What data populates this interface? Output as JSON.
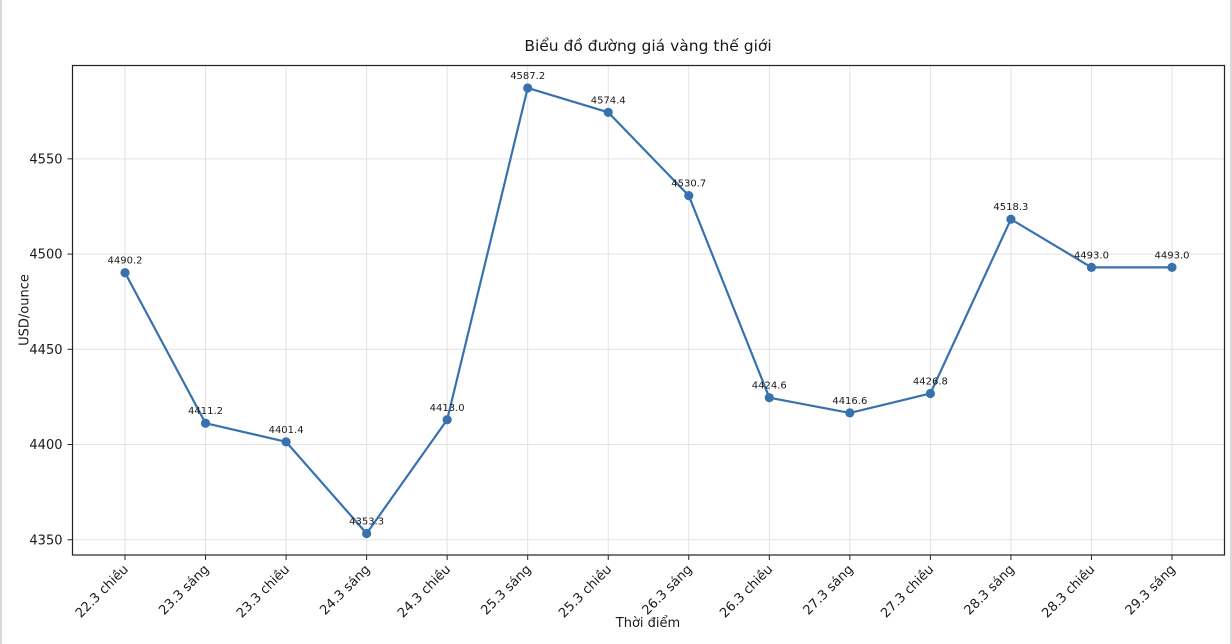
{
  "page": {
    "background": "#ffffff",
    "edge_border_color": "#d9d9d9"
  },
  "chart_data": {
    "type": "line",
    "title": "Biểu đồ đường giá vàng thế giới",
    "xlabel": "Thời điểm",
    "ylabel": "USD/ounce",
    "categories": [
      "22.3 chiều",
      "23.3 sáng",
      "23.3 chiều",
      "24.3 sáng",
      "24.3 chiều",
      "25.3 sáng",
      "25.3 chiều",
      "26.3 sáng",
      "26.3 chiều",
      "27.3 sáng",
      "27.3 chiều",
      "28.3 sáng",
      "28.3 chiều",
      "29.3 sáng"
    ],
    "values": [
      4490.2,
      4411.2,
      4401.4,
      4353.3,
      4413.0,
      4587.2,
      4574.4,
      4530.7,
      4424.6,
      4416.6,
      4426.8,
      4518.3,
      4493.0,
      4493.0
    ],
    "point_labels": [
      "4490.2",
      "4411.2",
      "4401.4",
      "4353.3",
      "4413.0",
      "4587.2",
      "4574.4",
      "4530.7",
      "4424.6",
      "4416.6",
      "4426.8",
      "4518.3",
      "4493.0",
      "4493.0"
    ],
    "yticks": [
      4350,
      4400,
      4450,
      4500,
      4550
    ],
    "ylim": [
      4342,
      4599
    ],
    "grid": true,
    "grid_color": "#e2e2e2",
    "axis_color": "#222222",
    "text_color": "#1a1a1a",
    "line_color": "#3772af",
    "marker_color": "#3772af"
  }
}
